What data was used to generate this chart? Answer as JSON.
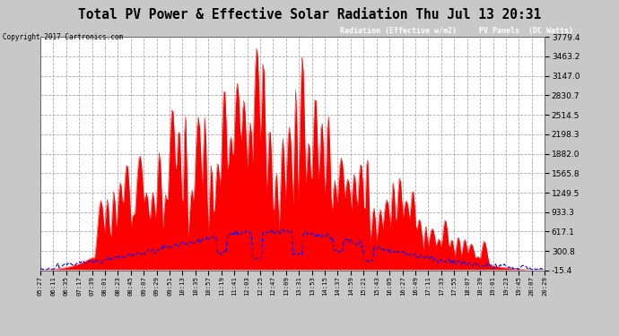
{
  "title": "Total PV Power & Effective Solar Radiation Thu Jul 13 20:31",
  "copyright": "Copyright 2017 Cartronics.com",
  "legend_rad_label": "Radiation (Effective w/m2)",
  "legend_pv_label": "PV Panels  (DC Watts)",
  "legend_rad_bg": "#0000cc",
  "legend_pv_bg": "#cc0000",
  "ylim": [
    -15.4,
    3779.4
  ],
  "yticks": [
    3779.4,
    3463.2,
    3147.0,
    2830.7,
    2514.5,
    2198.3,
    1882.0,
    1565.8,
    1249.5,
    933.3,
    617.1,
    300.8,
    -15.4
  ],
  "bg_color": "#c8c8c8",
  "plot_bg_color": "#ffffff",
  "grid_color": "#aaaaaa",
  "red_fill_color": "#ff0000",
  "blue_line_color": "#0000ff",
  "xtick_labels": [
    "05:27",
    "06:11",
    "06:35",
    "07:17",
    "07:39",
    "08:01",
    "08:23",
    "08:45",
    "09:07",
    "09:29",
    "09:51",
    "10:13",
    "10:35",
    "10:57",
    "11:19",
    "11:41",
    "12:03",
    "12:25",
    "12:47",
    "13:09",
    "13:31",
    "13:53",
    "14:15",
    "14:37",
    "14:59",
    "15:21",
    "15:43",
    "16:05",
    "16:27",
    "16:49",
    "17:11",
    "17:33",
    "17:55",
    "18:07",
    "18:39",
    "19:01",
    "19:23",
    "19:45",
    "20:07",
    "20:29"
  ]
}
